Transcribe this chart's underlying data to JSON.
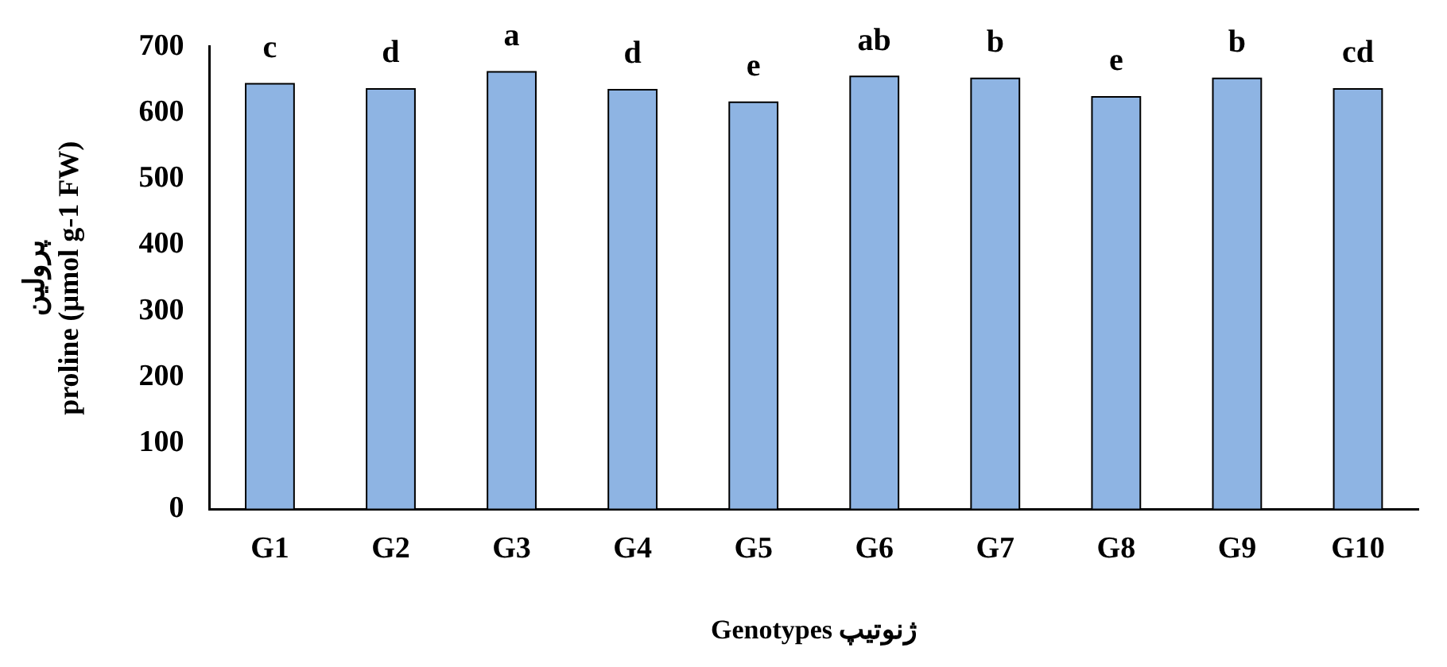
{
  "chart_data": {
    "type": "bar",
    "xlabel": "Genotypes ژنوتیپ",
    "ylabel": "پرولین\nproline (µmol g-1 FW)",
    "categories": [
      "G1",
      "G2",
      "G3",
      "G4",
      "G5",
      "G6",
      "G7",
      "G8",
      "G9",
      "G10"
    ],
    "values": [
      644,
      636,
      662,
      635,
      616,
      655,
      652,
      624,
      652,
      636
    ],
    "color": "#8eb4e3",
    "ylim": [
      0,
      700
    ],
    "yticks": [
      0,
      100,
      200,
      300,
      400,
      500,
      600,
      700
    ],
    "grid": false,
    "legend": false,
    "annotations": [
      {
        "text": "c",
        "x": "G1",
        "y": 644
      },
      {
        "text": "d",
        "x": "G2",
        "y": 636
      },
      {
        "text": "a",
        "x": "G3",
        "y": 662
      },
      {
        "text": "d",
        "x": "G4",
        "y": 635
      },
      {
        "text": "e",
        "x": "G5",
        "y": 616
      },
      {
        "text": "ab",
        "x": "G6",
        "y": 655
      },
      {
        "text": "b",
        "x": "G7",
        "y": 652
      },
      {
        "text": "e",
        "x": "G8",
        "y": 624
      },
      {
        "text": "b",
        "x": "G9",
        "y": 652
      },
      {
        "text": "cd",
        "x": "G10",
        "y": 636
      }
    ]
  }
}
